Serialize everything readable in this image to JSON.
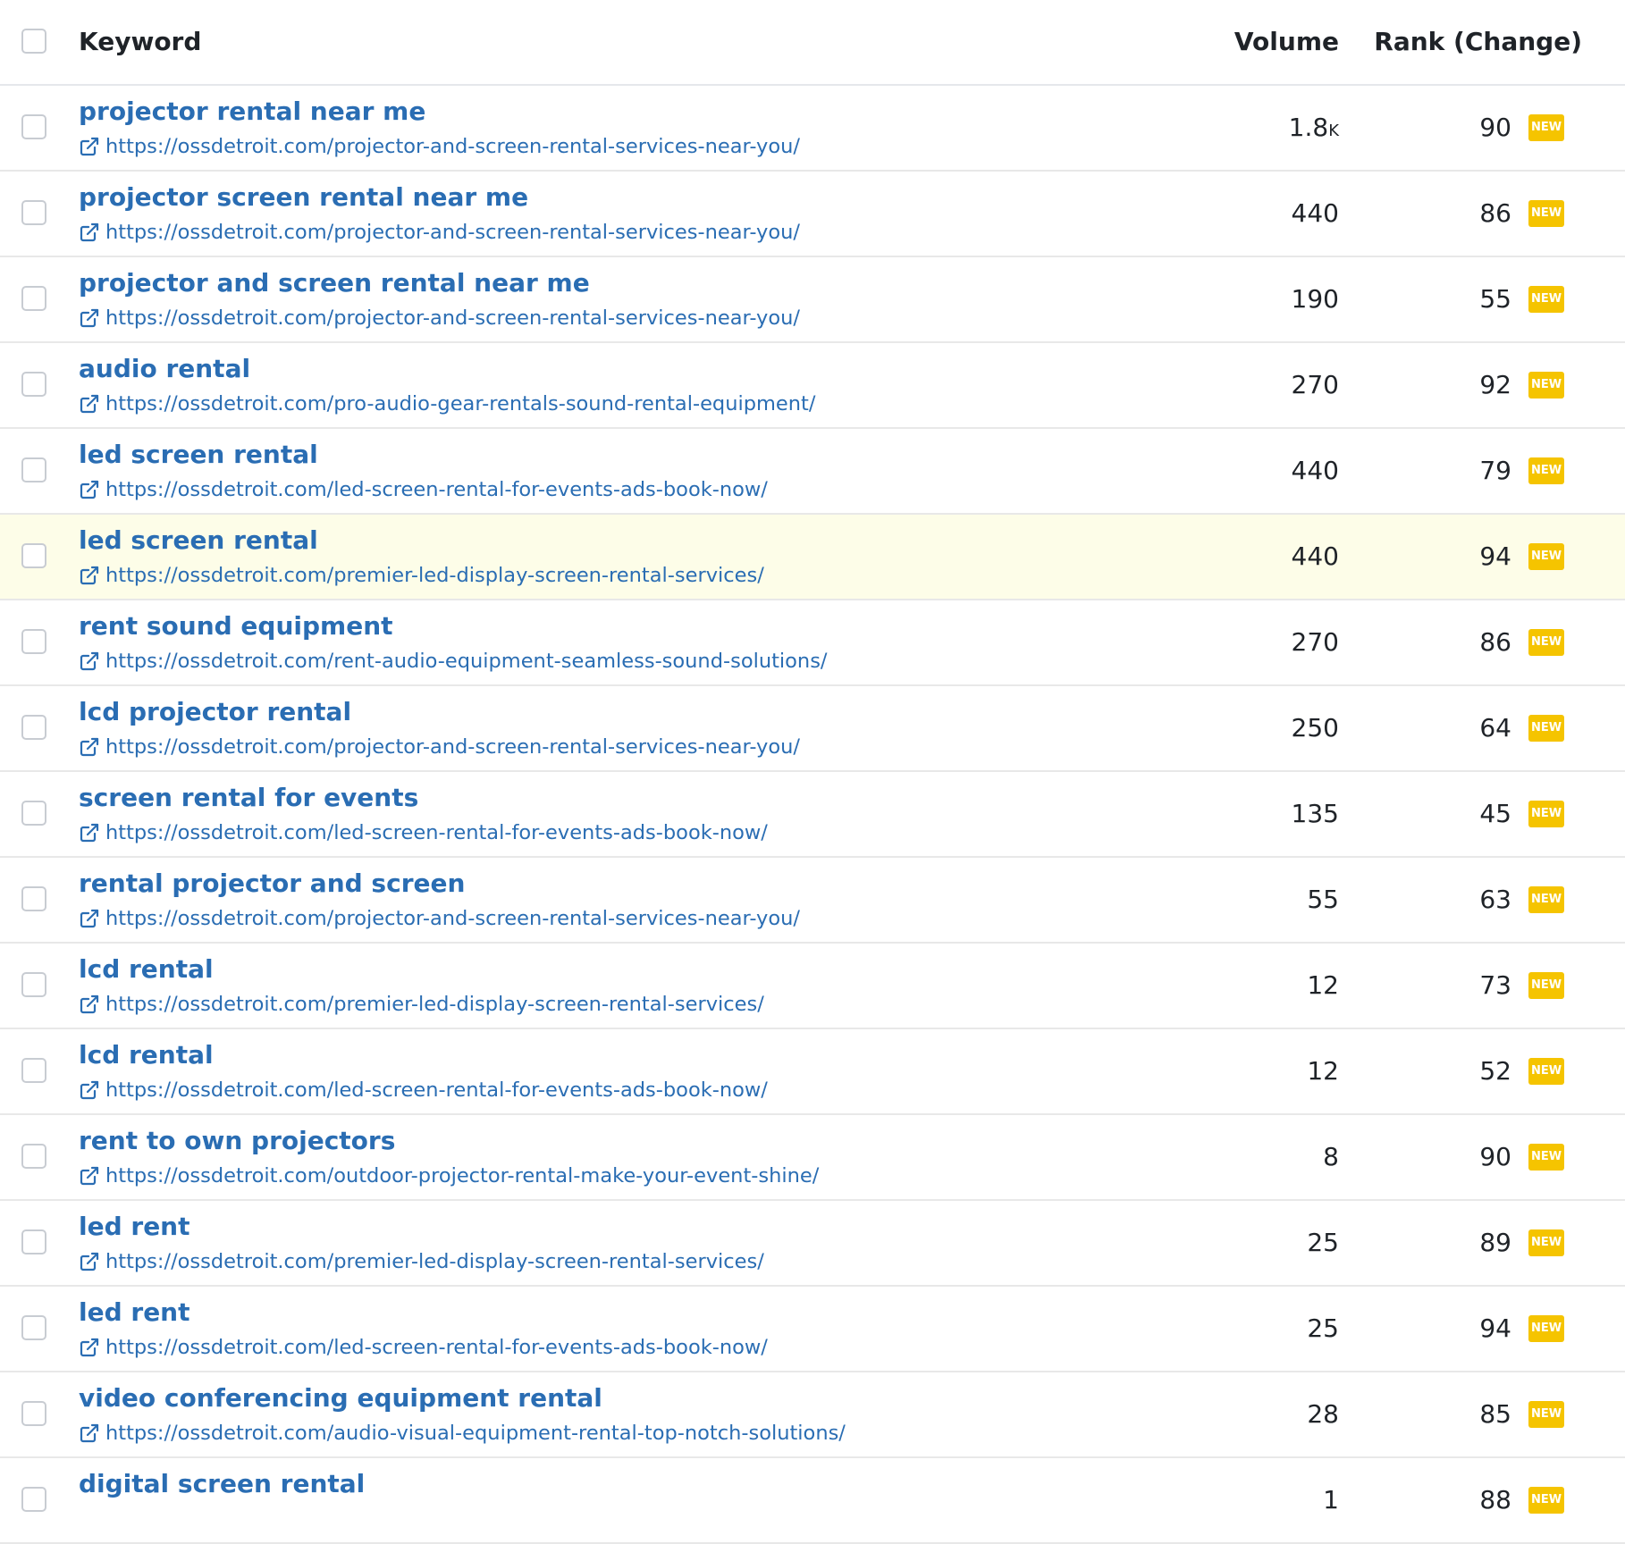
{
  "header": {
    "keyword": "Keyword",
    "volume": "Volume",
    "rank": "Rank (Change)"
  },
  "rows": [
    {
      "keyword": "projector rental near me",
      "url": "https://ossdetroit.com/projector-and-screen-rental-services-near-you/",
      "volume": "1.8",
      "volume_unit": "K",
      "rank": "90",
      "badge": "NEW",
      "highlight": false
    },
    {
      "keyword": "projector screen rental near me",
      "url": "https://ossdetroit.com/projector-and-screen-rental-services-near-you/",
      "volume": "440",
      "volume_unit": "",
      "rank": "86",
      "badge": "NEW",
      "highlight": false
    },
    {
      "keyword": "projector and screen rental near me",
      "url": "https://ossdetroit.com/projector-and-screen-rental-services-near-you/",
      "volume": "190",
      "volume_unit": "",
      "rank": "55",
      "badge": "NEW",
      "highlight": false
    },
    {
      "keyword": "audio rental",
      "url": "https://ossdetroit.com/pro-audio-gear-rentals-sound-rental-equipment/",
      "volume": "270",
      "volume_unit": "",
      "rank": "92",
      "badge": "NEW",
      "highlight": false
    },
    {
      "keyword": "led screen rental",
      "url": "https://ossdetroit.com/led-screen-rental-for-events-ads-book-now/",
      "volume": "440",
      "volume_unit": "",
      "rank": "79",
      "badge": "NEW",
      "highlight": false
    },
    {
      "keyword": "led screen rental",
      "url": "https://ossdetroit.com/premier-led-display-screen-rental-services/",
      "volume": "440",
      "volume_unit": "",
      "rank": "94",
      "badge": "NEW",
      "highlight": true
    },
    {
      "keyword": "rent sound equipment",
      "url": "https://ossdetroit.com/rent-audio-equipment-seamless-sound-solutions/",
      "volume": "270",
      "volume_unit": "",
      "rank": "86",
      "badge": "NEW",
      "highlight": false
    },
    {
      "keyword": "lcd projector rental",
      "url": "https://ossdetroit.com/projector-and-screen-rental-services-near-you/",
      "volume": "250",
      "volume_unit": "",
      "rank": "64",
      "badge": "NEW",
      "highlight": false
    },
    {
      "keyword": "screen rental for events",
      "url": "https://ossdetroit.com/led-screen-rental-for-events-ads-book-now/",
      "volume": "135",
      "volume_unit": "",
      "rank": "45",
      "badge": "NEW",
      "highlight": false
    },
    {
      "keyword": "rental projector and screen",
      "url": "https://ossdetroit.com/projector-and-screen-rental-services-near-you/",
      "volume": "55",
      "volume_unit": "",
      "rank": "63",
      "badge": "NEW",
      "highlight": false
    },
    {
      "keyword": "lcd rental",
      "url": "https://ossdetroit.com/premier-led-display-screen-rental-services/",
      "volume": "12",
      "volume_unit": "",
      "rank": "73",
      "badge": "NEW",
      "highlight": false
    },
    {
      "keyword": "lcd rental",
      "url": "https://ossdetroit.com/led-screen-rental-for-events-ads-book-now/",
      "volume": "12",
      "volume_unit": "",
      "rank": "52",
      "badge": "NEW",
      "highlight": false
    },
    {
      "keyword": "rent to own projectors",
      "url": "https://ossdetroit.com/outdoor-projector-rental-make-your-event-shine/",
      "volume": "8",
      "volume_unit": "",
      "rank": "90",
      "badge": "NEW",
      "highlight": false
    },
    {
      "keyword": "led rent",
      "url": "https://ossdetroit.com/premier-led-display-screen-rental-services/",
      "volume": "25",
      "volume_unit": "",
      "rank": "89",
      "badge": "NEW",
      "highlight": false
    },
    {
      "keyword": "led rent",
      "url": "https://ossdetroit.com/led-screen-rental-for-events-ads-book-now/",
      "volume": "25",
      "volume_unit": "",
      "rank": "94",
      "badge": "NEW",
      "highlight": false
    },
    {
      "keyword": "video conferencing equipment rental",
      "url": "https://ossdetroit.com/audio-visual-equipment-rental-top-notch-solutions/",
      "volume": "28",
      "volume_unit": "",
      "rank": "85",
      "badge": "NEW",
      "highlight": false
    },
    {
      "keyword": "digital screen rental",
      "url": "",
      "volume": "1",
      "volume_unit": "",
      "rank": "88",
      "badge": "NEW",
      "highlight": false
    }
  ],
  "colors": {
    "link": "#2a6db3",
    "badge": "#f5c400",
    "highlight_row": "#fdfde8"
  },
  "icons": {
    "row_link_icon": "external-link-icon"
  }
}
